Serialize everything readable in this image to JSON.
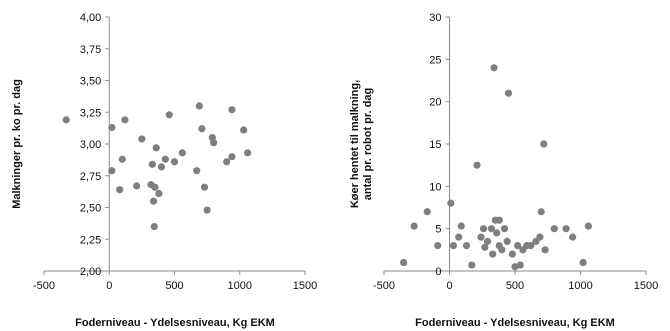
{
  "chart_data": [
    {
      "type": "scatter",
      "xlabel": "Foderniveau - Ydelsesniveau, Kg EKM",
      "ylabel": "Malkninger pr. ko pr. dag",
      "xlim": [
        -500,
        1500
      ],
      "ylim": [
        2.0,
        4.0
      ],
      "x_ticks": [
        -500,
        0,
        500,
        1000,
        1500
      ],
      "y_ticks": [
        2.0,
        2.25,
        2.5,
        2.75,
        3.0,
        3.25,
        3.5,
        3.75,
        4.0
      ],
      "x_tick_labels": [
        "-500",
        "0",
        "500",
        "1000",
        "1500"
      ],
      "y_tick_labels": [
        "2,00",
        "2,25",
        "2,50",
        "2,75",
        "3,00",
        "3,25",
        "3,50",
        "3,75",
        "4,00"
      ],
      "grid": false,
      "marker_color": "#7f7f7f",
      "points": [
        {
          "x": -330,
          "y": 3.19
        },
        {
          "x": 20,
          "y": 3.13
        },
        {
          "x": 20,
          "y": 2.79
        },
        {
          "x": 80,
          "y": 2.64
        },
        {
          "x": 100,
          "y": 2.88
        },
        {
          "x": 120,
          "y": 3.19
        },
        {
          "x": 210,
          "y": 2.67
        },
        {
          "x": 250,
          "y": 3.04
        },
        {
          "x": 320,
          "y": 2.68
        },
        {
          "x": 330,
          "y": 2.84
        },
        {
          "x": 340,
          "y": 2.55
        },
        {
          "x": 345,
          "y": 2.35
        },
        {
          "x": 350,
          "y": 2.66
        },
        {
          "x": 360,
          "y": 2.97
        },
        {
          "x": 380,
          "y": 2.61
        },
        {
          "x": 400,
          "y": 2.82
        },
        {
          "x": 430,
          "y": 2.88
        },
        {
          "x": 460,
          "y": 3.23
        },
        {
          "x": 500,
          "y": 2.86
        },
        {
          "x": 560,
          "y": 2.93
        },
        {
          "x": 670,
          "y": 2.79
        },
        {
          "x": 690,
          "y": 3.3
        },
        {
          "x": 710,
          "y": 3.12
        },
        {
          "x": 730,
          "y": 2.66
        },
        {
          "x": 750,
          "y": 2.48
        },
        {
          "x": 790,
          "y": 3.05
        },
        {
          "x": 800,
          "y": 3.01
        },
        {
          "x": 900,
          "y": 2.86
        },
        {
          "x": 940,
          "y": 2.9
        },
        {
          "x": 940,
          "y": 3.27
        },
        {
          "x": 1030,
          "y": 3.11
        },
        {
          "x": 1060,
          "y": 2.93
        }
      ]
    },
    {
      "type": "scatter",
      "xlabel": "Foderniveau  - Ydelsesniveau,  Kg EKM",
      "ylabel": [
        "Køer hentet til malkning,",
        "antal pr. robot pr. dag"
      ],
      "xlim": [
        -500,
        1500
      ],
      "ylim": [
        0,
        30
      ],
      "x_ticks": [
        -500,
        0,
        500,
        1000,
        1500
      ],
      "y_ticks": [
        0,
        5,
        10,
        15,
        20,
        25,
        30
      ],
      "x_tick_labels": [
        "-500",
        "0",
        "500",
        "1000",
        "1500"
      ],
      "y_tick_labels": [
        "0",
        "5",
        "10",
        "15",
        "20",
        "25",
        "30"
      ],
      "grid": false,
      "marker_color": "#7f7f7f",
      "points": [
        {
          "x": -350,
          "y": 1
        },
        {
          "x": -270,
          "y": 5.3
        },
        {
          "x": -170,
          "y": 7
        },
        {
          "x": -90,
          "y": 3
        },
        {
          "x": 10,
          "y": 8
        },
        {
          "x": 30,
          "y": 3
        },
        {
          "x": 70,
          "y": 4
        },
        {
          "x": 90,
          "y": 5.3
        },
        {
          "x": 130,
          "y": 3
        },
        {
          "x": 170,
          "y": 0.7
        },
        {
          "x": 210,
          "y": 12.5
        },
        {
          "x": 240,
          "y": 4
        },
        {
          "x": 260,
          "y": 5
        },
        {
          "x": 270,
          "y": 2.8
        },
        {
          "x": 290,
          "y": 3.5
        },
        {
          "x": 320,
          "y": 5
        },
        {
          "x": 330,
          "y": 2
        },
        {
          "x": 340,
          "y": 24
        },
        {
          "x": 350,
          "y": 6
        },
        {
          "x": 360,
          "y": 4.5
        },
        {
          "x": 380,
          "y": 6
        },
        {
          "x": 380,
          "y": 3
        },
        {
          "x": 400,
          "y": 2.5
        },
        {
          "x": 420,
          "y": 5
        },
        {
          "x": 440,
          "y": 3.5
        },
        {
          "x": 450,
          "y": 21
        },
        {
          "x": 480,
          "y": 2
        },
        {
          "x": 500,
          "y": 0.5
        },
        {
          "x": 520,
          "y": 3
        },
        {
          "x": 540,
          "y": 0.7
        },
        {
          "x": 560,
          "y": 2.5
        },
        {
          "x": 590,
          "y": 3
        },
        {
          "x": 620,
          "y": 3
        },
        {
          "x": 660,
          "y": 3.5
        },
        {
          "x": 690,
          "y": 4
        },
        {
          "x": 700,
          "y": 7
        },
        {
          "x": 720,
          "y": 15
        },
        {
          "x": 730,
          "y": 2.5
        },
        {
          "x": 800,
          "y": 5
        },
        {
          "x": 890,
          "y": 5
        },
        {
          "x": 940,
          "y": 4
        },
        {
          "x": 1020,
          "y": 1
        },
        {
          "x": 1060,
          "y": 5.3
        }
      ]
    }
  ]
}
